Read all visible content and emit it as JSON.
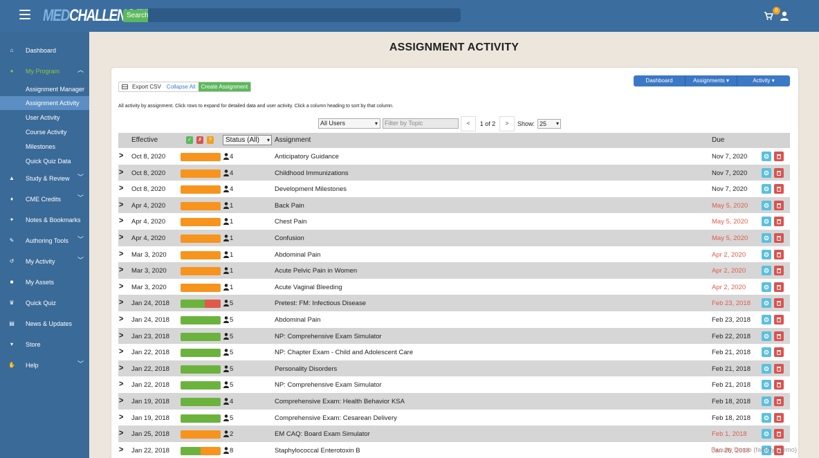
{
  "brand": {
    "logo_med": "MED",
    "logo_rest": "CHALLENGER"
  },
  "header": {
    "search_label": "Search",
    "cart_count": "0"
  },
  "sidebar": {
    "items": [
      {
        "label": "Dashboard",
        "icon": "home-icon",
        "expandable": false
      },
      {
        "label": "My Program",
        "icon": "group-icon",
        "expandable": true,
        "expanded": true
      },
      {
        "label": "Study & Review",
        "icon": "graduation-cap-icon",
        "expandable": true
      },
      {
        "label": "CME Credits",
        "icon": "bell-icon",
        "expandable": true
      },
      {
        "label": "Notes & Bookmarks",
        "icon": "pushpin-icon",
        "expandable": false
      },
      {
        "label": "Authoring Tools",
        "icon": "edit-icon",
        "expandable": true
      },
      {
        "label": "My Activity",
        "icon": "history-icon",
        "expandable": true
      },
      {
        "label": "My Assets",
        "icon": "book-icon",
        "expandable": false
      },
      {
        "label": "Quick Quiz",
        "icon": "trophy-icon",
        "expandable": false
      },
      {
        "label": "News & Updates",
        "icon": "newspaper-icon",
        "expandable": false
      },
      {
        "label": "Store",
        "icon": "cart-icon",
        "expandable": false
      },
      {
        "label": "Help",
        "icon": "handshake-icon",
        "expandable": true
      }
    ],
    "subitems": [
      {
        "label": "Assignment Manager"
      },
      {
        "label": "Assignment Activity",
        "current": true
      },
      {
        "label": "User Activity"
      },
      {
        "label": "Course Activity"
      },
      {
        "label": "Milestones"
      },
      {
        "label": "Quick Quiz Data"
      }
    ]
  },
  "page": {
    "title": "ASSIGNMENT ACTIVITY",
    "toolbar": {
      "export": "Export CSV",
      "collapse": "Collapse All",
      "create": "Create Assignment"
    },
    "nav": {
      "dashboard": "Dashboard",
      "assignments": "Assignments",
      "activity": "Activity"
    },
    "help_text": "All activity by assignment. Click rows to expand for detailed data and user activity. Click a column heading to sort by that column.",
    "filters": {
      "users_selected": "All Users",
      "topic_placeholder": "Filter by Topic",
      "page_info": "1 of 2",
      "prev": "<",
      "next": ">",
      "show_label": "Show:",
      "show_value": "25"
    }
  },
  "colors": {
    "green": "#6cb33e",
    "orange": "#f7941d",
    "red": "#e05a4b",
    "late": "#e05a4b"
  },
  "table": {
    "headers": {
      "effective": "Effective",
      "status": "Status (All)",
      "assignment": "Assignment",
      "due": "Due"
    },
    "status_icons": [
      "✓",
      "✗",
      "?"
    ],
    "rows": [
      {
        "effective": "Oct 8, 2020",
        "segments": [
          [
            "orange",
            1
          ]
        ],
        "count": "4",
        "assignment": "Anticipatory Guidance",
        "due": "Nov 7, 2020",
        "late": false
      },
      {
        "effective": "Oct 8, 2020",
        "segments": [
          [
            "orange",
            1
          ]
        ],
        "count": "4",
        "assignment": "Childhood Immunizations",
        "due": "Nov 7, 2020",
        "late": false
      },
      {
        "effective": "Oct 8, 2020",
        "segments": [
          [
            "orange",
            1
          ]
        ],
        "count": "4",
        "assignment": "Development Milestones",
        "due": "Nov 7, 2020",
        "late": false
      },
      {
        "effective": "Apr 4, 2020",
        "segments": [
          [
            "orange",
            1
          ]
        ],
        "count": "1",
        "assignment": "Back Pain",
        "due": "May 5, 2020",
        "late": true
      },
      {
        "effective": "Apr 4, 2020",
        "segments": [
          [
            "orange",
            1
          ]
        ],
        "count": "1",
        "assignment": "Chest Pain",
        "due": "May 5, 2020",
        "late": true
      },
      {
        "effective": "Apr 4, 2020",
        "segments": [
          [
            "orange",
            1
          ]
        ],
        "count": "1",
        "assignment": "Confusion",
        "due": "May 5, 2020",
        "late": true
      },
      {
        "effective": "Mar 3, 2020",
        "segments": [
          [
            "orange",
            1
          ]
        ],
        "count": "1",
        "assignment": "Abdominal Pain",
        "due": "Apr 2, 2020",
        "late": true
      },
      {
        "effective": "Mar 3, 2020",
        "segments": [
          [
            "orange",
            1
          ]
        ],
        "count": "1",
        "assignment": "Acute Pelvic Pain in Women",
        "due": "Apr 2, 2020",
        "late": true
      },
      {
        "effective": "Mar 3, 2020",
        "segments": [
          [
            "orange",
            1
          ]
        ],
        "count": "1",
        "assignment": "Acute Vaginal Bleeding",
        "due": "Apr 2, 2020",
        "late": true
      },
      {
        "effective": "Jan 24, 2018",
        "segments": [
          [
            "green",
            0.6
          ],
          [
            "red",
            0.4
          ]
        ],
        "count": "5",
        "assignment": "Pretest: FM: Infectious Disease",
        "due": "Feb 23, 2018",
        "late": true
      },
      {
        "effective": "Jan 24, 2018",
        "segments": [
          [
            "green",
            1
          ]
        ],
        "count": "5",
        "assignment": "Abdominal Pain",
        "due": "Feb 23, 2018",
        "late": false
      },
      {
        "effective": "Jan 23, 2018",
        "segments": [
          [
            "green",
            1
          ]
        ],
        "count": "5",
        "assignment": "NP: Comprehensive Exam Simulator",
        "due": "Feb 22, 2018",
        "late": false
      },
      {
        "effective": "Jan 22, 2018",
        "segments": [
          [
            "green",
            1
          ]
        ],
        "count": "5",
        "assignment": "NP: Chapter Exam - Child and Adolescent Care",
        "due": "Feb 21, 2018",
        "late": false
      },
      {
        "effective": "Jan 22, 2018",
        "segments": [
          [
            "green",
            1
          ]
        ],
        "count": "5",
        "assignment": "Personality Disorders",
        "due": "Feb 21, 2018",
        "late": false
      },
      {
        "effective": "Jan 22, 2018",
        "segments": [
          [
            "green",
            1
          ]
        ],
        "count": "5",
        "assignment": "NP: Comprehensive Exam Simulator",
        "due": "Feb 21, 2018",
        "late": false
      },
      {
        "effective": "Jan 19, 2018",
        "segments": [
          [
            "green",
            1
          ]
        ],
        "count": "4",
        "assignment": "Comprehensive Exam: Health Behavior KSA",
        "due": "Feb 18, 2018",
        "late": false
      },
      {
        "effective": "Jan 19, 2018",
        "segments": [
          [
            "green",
            1
          ]
        ],
        "count": "5",
        "assignment": "Comprehensive Exam: Cesarean Delivery",
        "due": "Feb 18, 2018",
        "late": false
      },
      {
        "effective": "Jan 25, 2018",
        "segments": [
          [
            "orange",
            1
          ]
        ],
        "count": "2",
        "assignment": "EM CAQ: Board Exam Simulator",
        "due": "Feb 1, 2018",
        "late": true
      },
      {
        "effective": "Jan 22, 2018",
        "segments": [
          [
            "green",
            0.5
          ],
          [
            "orange",
            0.5
          ]
        ],
        "count": "8",
        "assignment": "Staphylococcal Enterotoxin B",
        "due": "Jan 26, 2018",
        "late": true
      }
    ]
  },
  "watermark": "Faculty Demo (faculty_demo)"
}
